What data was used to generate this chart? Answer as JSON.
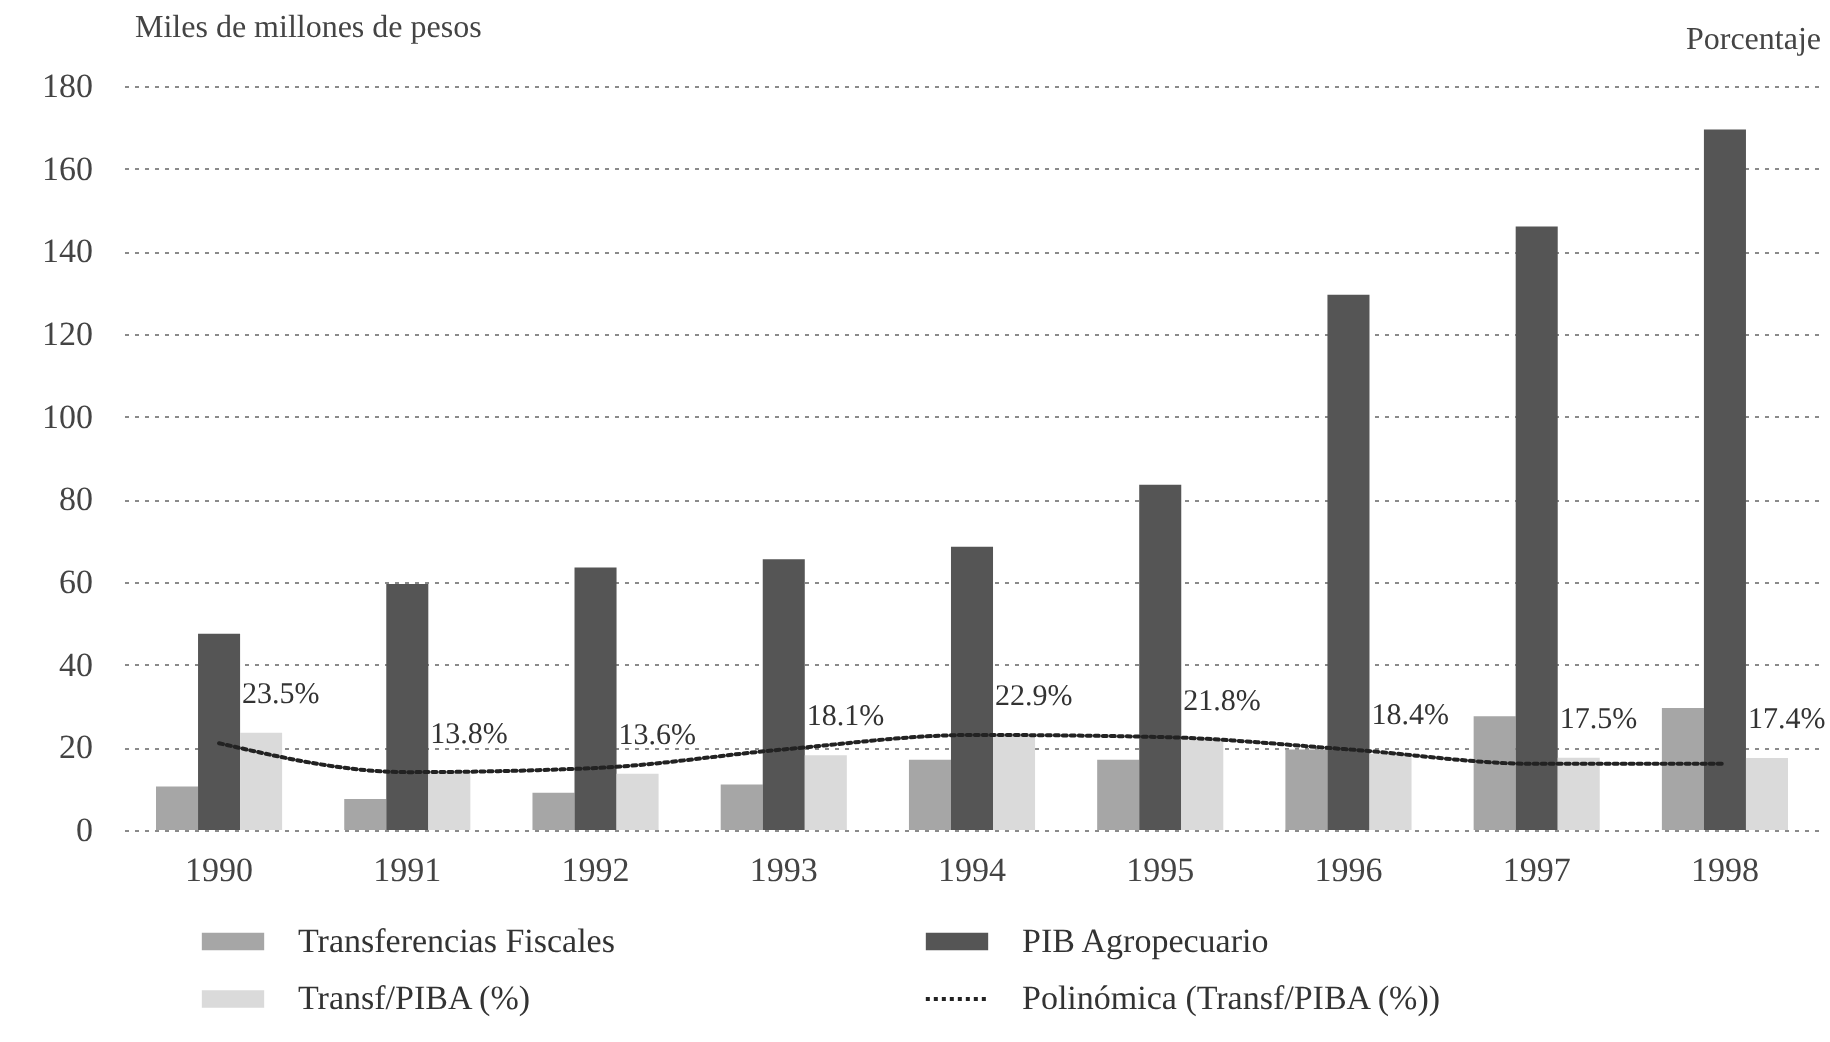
{
  "chart_data": {
    "type": "bar",
    "ylabel": "Miles de millones de pesos",
    "y2label": "Porcentaje",
    "categories": [
      "1990",
      "1991",
      "1992",
      "1993",
      "1994",
      "1995",
      "1996",
      "1997",
      "1998"
    ],
    "series": [
      {
        "name": "Transferencias Fiscales",
        "color": "#a6a6a6",
        "values": [
          10.5,
          7.5,
          9,
          11,
          17,
          17,
          19.5,
          27.5,
          29.5
        ]
      },
      {
        "name": "PIB Agropecuario",
        "color": "#555555",
        "values": [
          47.5,
          59.5,
          63.5,
          65.5,
          68.5,
          83.5,
          129.5,
          146,
          169.5
        ]
      },
      {
        "name": "Transf/PIBA (%)",
        "color": "#dadada",
        "values": [
          23.5,
          13.8,
          13.6,
          18.1,
          22.9,
          21.8,
          18.4,
          17.5,
          17.4
        ],
        "value_labels": [
          "23.5%",
          "13.8%",
          "13.6%",
          "18.1%",
          "22.9%",
          "21.8%",
          "18.4%",
          "17.5%",
          "17.4%"
        ]
      },
      {
        "name": "Polinómica (Transf/PIBA (%))",
        "type": "line",
        "color": "#222222",
        "line_style": "dotted",
        "values": [
          21,
          14,
          15,
          19.5,
          23,
          22.5,
          19.5,
          16,
          16
        ]
      }
    ],
    "ylim": [
      0,
      180
    ],
    "yticks": [
      0,
      20,
      40,
      60,
      80,
      100,
      120,
      140,
      160,
      180
    ],
    "grid": "y",
    "legend": "bottom",
    "marker": "none"
  }
}
